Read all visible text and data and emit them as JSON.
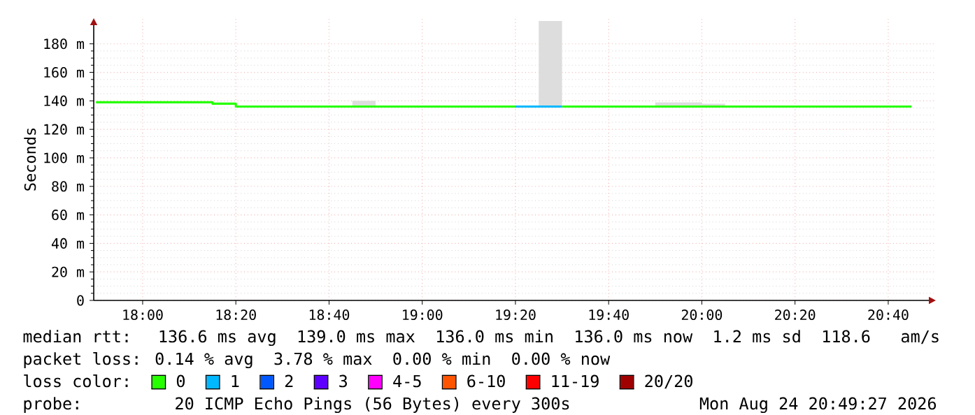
{
  "chart_data": {
    "type": "line",
    "ylabel": "Seconds",
    "xlim": [
      17.825,
      20.837
    ],
    "ylim": [
      0,
      198
    ],
    "xticks": [
      {
        "value": 18,
        "label": "18:00"
      },
      {
        "value": 18.3333,
        "label": "18:20"
      },
      {
        "value": 18.6667,
        "label": "18:40"
      },
      {
        "value": 19,
        "label": "19:00"
      },
      {
        "value": 19.3333,
        "label": "19:20"
      },
      {
        "value": 19.6667,
        "label": "19:40"
      },
      {
        "value": 20,
        "label": "20:00"
      },
      {
        "value": 20.3333,
        "label": "20:20"
      },
      {
        "value": 20.6667,
        "label": "20:40"
      }
    ],
    "yticks": [
      0,
      {
        "value": 20,
        "label": "20 m"
      },
      {
        "value": 40,
        "label": "40 m"
      },
      {
        "value": 60,
        "label": "60 m"
      },
      {
        "value": 80,
        "label": "80 m"
      },
      {
        "value": 100,
        "label": "100 m"
      },
      {
        "value": 120,
        "label": "120 m"
      },
      {
        "value": 140,
        "label": "140 m"
      },
      {
        "value": 160,
        "label": "160 m"
      },
      {
        "value": 180,
        "label": "180 m"
      }
    ],
    "grid": true,
    "legend": "bottom",
    "legend_title": "loss color:",
    "series": [
      {
        "name": "0",
        "color": "#26ff00",
        "x": [
          17.8333,
          18.25,
          18.25,
          18.3333,
          18.3333,
          18.75,
          18.8333,
          19.3333,
          19.4167,
          19.5,
          19.8333,
          20.0,
          20.0,
          20.0833,
          20.75
        ],
        "values": [
          139,
          139,
          138,
          138,
          136,
          136,
          136,
          136,
          null,
          136,
          136,
          136,
          136,
          136,
          136
        ],
        "lower": [
          null,
          null,
          null,
          null,
          null,
          136,
          136,
          null,
          null,
          null,
          136,
          136,
          136,
          136,
          null
        ],
        "upper": [
          null,
          null,
          null,
          null,
          null,
          140,
          140,
          null,
          null,
          null,
          139,
          139,
          138,
          138,
          null
        ]
      },
      {
        "name": "1",
        "color": "#00b8ff",
        "x": [
          19.3333,
          19.4167,
          19.5
        ],
        "values": [
          136,
          136,
          136
        ],
        "lower": [
          null,
          136,
          136
        ],
        "upper": [
          null,
          196,
          196
        ]
      },
      {
        "name": "2",
        "color": "#0059ff"
      },
      {
        "name": "3",
        "color": "#5e00ff"
      },
      {
        "name": "4-5",
        "color": "#ff00ff"
      },
      {
        "name": "6-10",
        "color": "#ff5500"
      },
      {
        "name": "11-19",
        "color": "#ff0000"
      },
      {
        "name": "20/20",
        "color": "#a10000"
      }
    ],
    "annotations": [
      "median rtt:  136.6 ms avg  139.0 ms max  136.0 ms min  136.0 ms now  1.2 ms sd  118.6   am/s",
      "packet loss: 0.14 % avg  3.78 % max  0.00 % min  0.00 % now",
      "probe:       20 ICMP Echo Pings (56 Bytes) every 300s",
      "Mon Aug 24 20:49:27 2026"
    ]
  }
}
